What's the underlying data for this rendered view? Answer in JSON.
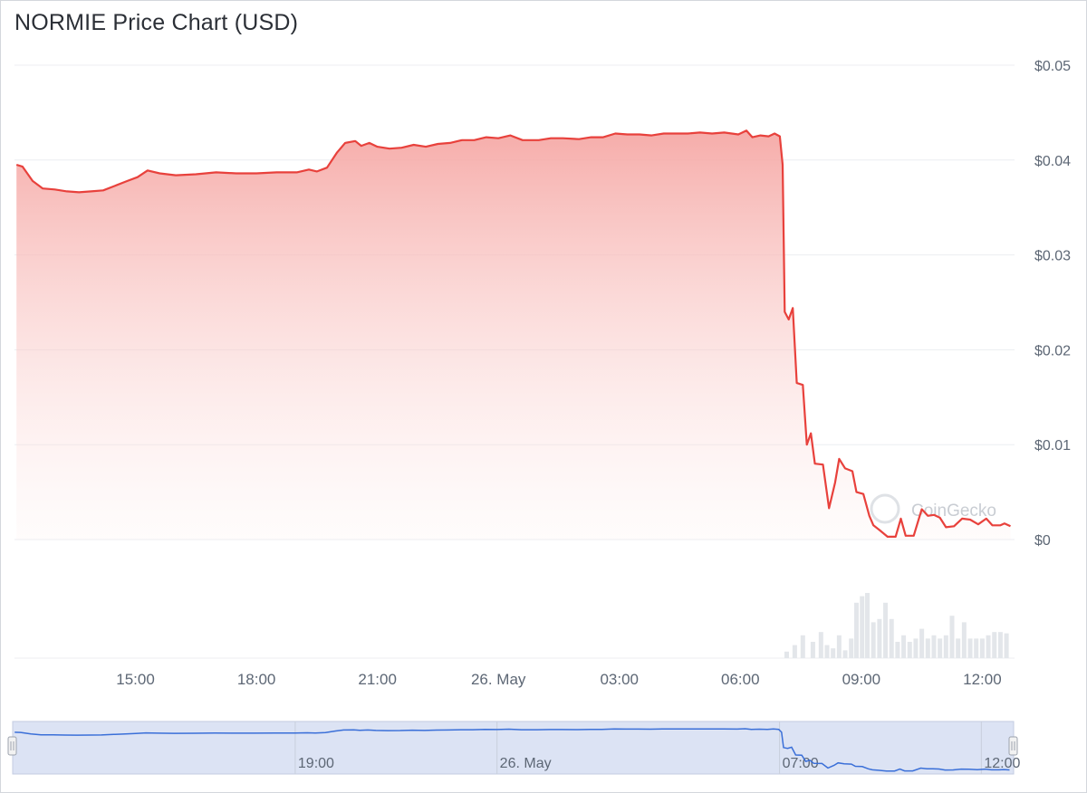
{
  "chart_data": {
    "type": "line",
    "title": "NORMIE Price Chart (USD)",
    "watermark": "CoinGecko",
    "y_ticks": [
      "$0.05",
      "$0.04",
      "$0.03",
      "$0.02",
      "$0.01",
      "$0"
    ],
    "ylim": [
      0,
      0.05
    ],
    "x_ticks": [
      {
        "label": "15:00",
        "t": 15
      },
      {
        "label": "18:00",
        "t": 18
      },
      {
        "label": "21:00",
        "t": 21
      },
      {
        "label": "26. May",
        "t": 24
      },
      {
        "label": "03:00",
        "t": 27
      },
      {
        "label": "06:00",
        "t": 30
      },
      {
        "label": "09:00",
        "t": 33
      },
      {
        "label": "12:00",
        "t": 36
      }
    ],
    "navigator_labels": [
      {
        "label": "19:00",
        "t": 19
      },
      {
        "label": "26. May",
        "t": 24
      },
      {
        "label": "07:00",
        "t": 31
      },
      {
        "label": "12:00",
        "t": 36
      }
    ],
    "colors": {
      "line": "#e8413c",
      "area": "#f28b86",
      "navigator": "#3a6fd8",
      "volume": "#e3e6ea"
    },
    "series": [
      {
        "values": [
          [
            12.05,
            0.0395
          ],
          [
            12.2,
            0.0393
          ],
          [
            12.45,
            0.0378
          ],
          [
            12.7,
            0.037
          ],
          [
            13.0,
            0.0369
          ],
          [
            13.3,
            0.0367
          ],
          [
            13.6,
            0.0366
          ],
          [
            13.9,
            0.0367
          ],
          [
            14.2,
            0.0368
          ],
          [
            14.5,
            0.0373
          ],
          [
            14.8,
            0.0378
          ],
          [
            15.05,
            0.0382
          ],
          [
            15.3,
            0.0389
          ],
          [
            15.6,
            0.0386
          ],
          [
            16.0,
            0.0384
          ],
          [
            16.5,
            0.0385
          ],
          [
            17.0,
            0.0387
          ],
          [
            17.5,
            0.0386
          ],
          [
            18.0,
            0.0386
          ],
          [
            18.5,
            0.0387
          ],
          [
            19.0,
            0.0387
          ],
          [
            19.3,
            0.039
          ],
          [
            19.5,
            0.0388
          ],
          [
            19.75,
            0.0392
          ],
          [
            20.0,
            0.0408
          ],
          [
            20.2,
            0.0418
          ],
          [
            20.45,
            0.042
          ],
          [
            20.6,
            0.0415
          ],
          [
            20.8,
            0.0418
          ],
          [
            21.0,
            0.0414
          ],
          [
            21.3,
            0.0412
          ],
          [
            21.6,
            0.0413
          ],
          [
            21.9,
            0.0416
          ],
          [
            22.2,
            0.0414
          ],
          [
            22.5,
            0.0417
          ],
          [
            22.8,
            0.0418
          ],
          [
            23.1,
            0.0421
          ],
          [
            23.4,
            0.0421
          ],
          [
            23.7,
            0.0424
          ],
          [
            24.0,
            0.0423
          ],
          [
            24.3,
            0.0426
          ],
          [
            24.6,
            0.0421
          ],
          [
            25.0,
            0.0421
          ],
          [
            25.3,
            0.0423
          ],
          [
            25.6,
            0.0423
          ],
          [
            26.0,
            0.0422
          ],
          [
            26.3,
            0.0424
          ],
          [
            26.6,
            0.0424
          ],
          [
            26.9,
            0.0428
          ],
          [
            27.2,
            0.0427
          ],
          [
            27.5,
            0.0427
          ],
          [
            27.8,
            0.0426
          ],
          [
            28.1,
            0.0428
          ],
          [
            28.4,
            0.0428
          ],
          [
            28.7,
            0.0428
          ],
          [
            29.0,
            0.0429
          ],
          [
            29.3,
            0.0428
          ],
          [
            29.6,
            0.0429
          ],
          [
            29.95,
            0.0427
          ],
          [
            30.15,
            0.0431
          ],
          [
            30.3,
            0.0424
          ],
          [
            30.5,
            0.0426
          ],
          [
            30.7,
            0.0425
          ],
          [
            30.85,
            0.0428
          ],
          [
            30.98,
            0.0425
          ],
          [
            31.05,
            0.0395
          ],
          [
            31.1,
            0.024
          ],
          [
            31.2,
            0.0232
          ],
          [
            31.3,
            0.0244
          ],
          [
            31.4,
            0.0165
          ],
          [
            31.55,
            0.0163
          ],
          [
            31.65,
            0.01
          ],
          [
            31.75,
            0.0112
          ],
          [
            31.85,
            0.008
          ],
          [
            32.05,
            0.0079
          ],
          [
            32.2,
            0.0033
          ],
          [
            32.35,
            0.006
          ],
          [
            32.45,
            0.0085
          ],
          [
            32.6,
            0.0075
          ],
          [
            32.78,
            0.0072
          ],
          [
            32.88,
            0.005
          ],
          [
            33.05,
            0.0048
          ],
          [
            33.2,
            0.0025
          ],
          [
            33.3,
            0.0015
          ],
          [
            33.45,
            0.001
          ],
          [
            33.65,
            0.0003
          ],
          [
            33.85,
            0.0003
          ],
          [
            33.98,
            0.0022
          ],
          [
            34.1,
            0.0004
          ],
          [
            34.3,
            0.0004
          ],
          [
            34.5,
            0.0032
          ],
          [
            34.65,
            0.0025
          ],
          [
            34.8,
            0.0026
          ],
          [
            34.95,
            0.0023
          ],
          [
            35.1,
            0.0013
          ],
          [
            35.3,
            0.0014
          ],
          [
            35.5,
            0.0022
          ],
          [
            35.7,
            0.0021
          ],
          [
            35.9,
            0.0016
          ],
          [
            36.1,
            0.0022
          ],
          [
            36.25,
            0.0015
          ],
          [
            36.45,
            0.0015
          ],
          [
            36.55,
            0.0017
          ],
          [
            36.7,
            0.0014
          ]
        ]
      }
    ],
    "volume": [
      [
        31.15,
        0.1
      ],
      [
        31.35,
        0.2
      ],
      [
        31.55,
        0.35
      ],
      [
        31.8,
        0.25
      ],
      [
        32.0,
        0.4
      ],
      [
        32.15,
        0.2
      ],
      [
        32.3,
        0.15
      ],
      [
        32.45,
        0.35
      ],
      [
        32.6,
        0.12
      ],
      [
        32.75,
        0.3
      ],
      [
        32.88,
        0.85
      ],
      [
        33.02,
        0.95
      ],
      [
        33.15,
        1.0
      ],
      [
        33.3,
        0.55
      ],
      [
        33.45,
        0.6
      ],
      [
        33.6,
        0.85
      ],
      [
        33.75,
        0.6
      ],
      [
        33.9,
        0.25
      ],
      [
        34.05,
        0.35
      ],
      [
        34.2,
        0.25
      ],
      [
        34.35,
        0.3
      ],
      [
        34.5,
        0.45
      ],
      [
        34.65,
        0.3
      ],
      [
        34.8,
        0.35
      ],
      [
        34.95,
        0.3
      ],
      [
        35.1,
        0.35
      ],
      [
        35.25,
        0.65
      ],
      [
        35.4,
        0.3
      ],
      [
        35.55,
        0.55
      ],
      [
        35.7,
        0.3
      ],
      [
        35.85,
        0.3
      ],
      [
        36.0,
        0.3
      ],
      [
        36.15,
        0.35
      ],
      [
        36.3,
        0.4
      ],
      [
        36.45,
        0.4
      ],
      [
        36.6,
        0.38
      ]
    ],
    "navigator_range": [
      12,
      36.8
    ]
  }
}
